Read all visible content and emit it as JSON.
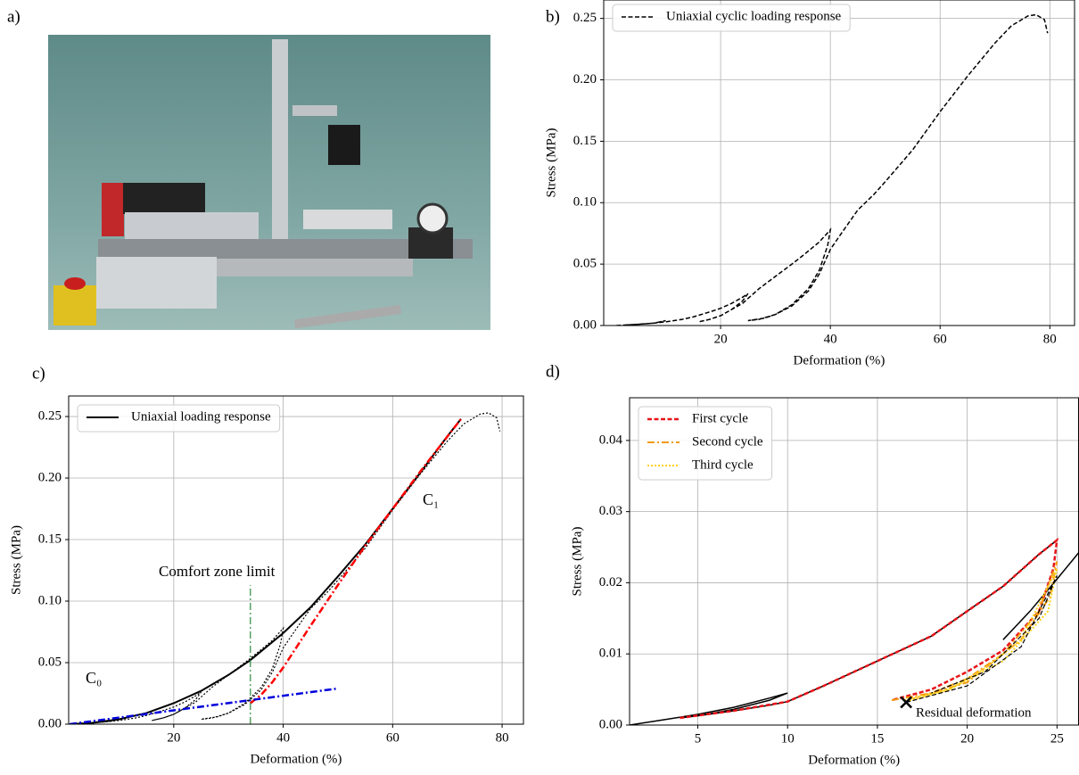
{
  "panel_a": {
    "label": "a)"
  },
  "chart_data": [
    {
      "type": "line",
      "label": "b)",
      "xlabel": "Deformation (%)",
      "ylabel": "Stress (MPa)",
      "xlim": [
        -1.3,
        84.5
      ],
      "ylim": [
        0,
        0.265
      ],
      "xticks": [
        20,
        40,
        60,
        80
      ],
      "yticks": [
        {
          "value": 0,
          "label": "0.00"
        },
        {
          "value": 0.05,
          "label": "0.05"
        },
        {
          "value": 0.1,
          "label": "0.10"
        },
        {
          "value": 0.15,
          "label": "0.15"
        },
        {
          "value": 0.2,
          "label": "0.20"
        },
        {
          "value": 0.25,
          "label": "0.25"
        }
      ],
      "grid": true,
      "legend": "upper left",
      "series": [
        {
          "name": "Uniaxial cyclic loading response",
          "color": "#000000",
          "style": "dashed",
          "width": 1.5,
          "x": [
            1,
            3,
            5,
            8,
            10,
            8,
            5,
            3,
            5,
            8,
            10,
            13,
            15,
            18,
            20,
            22,
            24,
            25,
            24,
            22,
            20,
            18,
            16,
            18,
            20,
            22,
            24,
            25,
            27,
            30,
            33,
            35,
            38,
            40,
            39.5,
            38,
            36,
            33,
            30,
            27,
            25,
            28,
            30,
            33,
            36,
            38,
            40,
            42,
            45,
            48,
            50,
            55,
            60,
            65,
            70,
            73,
            76,
            77.5,
            79,
            79.6
          ],
          "values": [
            0,
            0.0005,
            0.001,
            0.002,
            0.004,
            0.002,
            0.001,
            0.0005,
            0.001,
            0.002,
            0.003,
            0.005,
            0.007,
            0.011,
            0.014,
            0.018,
            0.023,
            0.026,
            0.02,
            0.013,
            0.008,
            0.005,
            0.003,
            0.005,
            0.008,
            0.013,
            0.018,
            0.022,
            0.03,
            0.04,
            0.05,
            0.057,
            0.068,
            0.078,
            0.065,
            0.045,
            0.03,
            0.017,
            0.009,
            0.005,
            0.004,
            0.006,
            0.009,
            0.016,
            0.028,
            0.042,
            0.062,
            0.075,
            0.094,
            0.107,
            0.117,
            0.143,
            0.174,
            0.203,
            0.23,
            0.244,
            0.252,
            0.253,
            0.249,
            0.238
          ]
        }
      ]
    },
    {
      "type": "line",
      "label": "c)",
      "xlabel": "Deformation (%)",
      "ylabel": "Stress (MPa)",
      "xlim": [
        0.8,
        83.9
      ],
      "ylim": [
        0,
        0.2667
      ],
      "xticks": [
        20,
        40,
        60,
        80
      ],
      "yticks": [
        {
          "value": 0,
          "label": "0.00"
        },
        {
          "value": 0.05,
          "label": "0.05"
        },
        {
          "value": 0.1,
          "label": "0.10"
        },
        {
          "value": 0.15,
          "label": "0.15"
        },
        {
          "value": 0.2,
          "label": "0.20"
        },
        {
          "value": 0.25,
          "label": "0.25"
        }
      ],
      "grid": true,
      "legend": "upper left",
      "annotations": [
        {
          "text": "C₀",
          "color": "#0000ff"
        },
        {
          "text": "C₁",
          "color": "#ff2020"
        },
        {
          "text": "Comfort zone limit",
          "color": "#2e8b3e"
        }
      ],
      "series": [
        {
          "color": "#000000",
          "style": "dotted",
          "width": 1.2,
          "x": [
            1,
            3,
            5,
            8,
            10,
            8,
            5,
            3,
            5,
            8,
            10,
            13,
            15,
            18,
            20,
            22,
            24,
            25,
            24,
            22,
            20,
            18,
            16,
            18,
            20,
            22,
            24,
            25,
            27,
            30,
            33,
            35,
            38,
            40,
            39.5,
            38,
            36,
            33,
            30,
            27,
            25,
            28,
            30,
            33,
            36,
            38,
            40,
            42,
            45,
            48,
            50,
            55,
            60,
            65,
            70,
            73,
            76,
            77.5,
            79,
            79.6
          ],
          "values": [
            0,
            0.0005,
            0.001,
            0.002,
            0.004,
            0.002,
            0.001,
            0.0005,
            0.001,
            0.002,
            0.003,
            0.005,
            0.007,
            0.011,
            0.014,
            0.018,
            0.023,
            0.026,
            0.02,
            0.013,
            0.008,
            0.005,
            0.003,
            0.005,
            0.008,
            0.013,
            0.018,
            0.022,
            0.03,
            0.04,
            0.05,
            0.057,
            0.068,
            0.078,
            0.065,
            0.045,
            0.03,
            0.017,
            0.009,
            0.005,
            0.004,
            0.006,
            0.009,
            0.016,
            0.028,
            0.042,
            0.062,
            0.075,
            0.094,
            0.107,
            0.117,
            0.143,
            0.174,
            0.203,
            0.23,
            0.244,
            0.252,
            0.253,
            0.249,
            0.238
          ]
        },
        {
          "name": "Uniaxial loading response",
          "color": "#000000",
          "style": "solid",
          "width": 2,
          "x": [
            1,
            5,
            10,
            15,
            20,
            25,
            30,
            34,
            40,
            45,
            50,
            55,
            60,
            65,
            70,
            72.5
          ],
          "values": [
            0,
            0.001,
            0.004,
            0.009,
            0.017,
            0.027,
            0.04,
            0.052,
            0.074,
            0.095,
            0.12,
            0.146,
            0.175,
            0.204,
            0.234,
            0.248
          ]
        },
        {
          "color": "#ff0000",
          "style": "dashdot",
          "width": 2.5,
          "x": [
            34,
            36,
            38,
            40,
            45,
            50,
            55,
            60,
            65,
            72.5
          ],
          "values": [
            0.017,
            0.024,
            0.034,
            0.046,
            0.08,
            0.113,
            0.145,
            0.175,
            0.205,
            0.248
          ]
        },
        {
          "color": "#0000dd",
          "style": "dashdot",
          "width": 2.5,
          "x": [
            1,
            50
          ],
          "values": [
            0,
            0.029
          ]
        },
        {
          "color": "#2e8b3e",
          "style": "dashdot",
          "width": 1.2,
          "x": [
            34,
            34
          ],
          "values": [
            0,
            0.113
          ]
        }
      ]
    },
    {
      "type": "line",
      "label": "d)",
      "xlabel": "Deformation (%)",
      "ylabel": "Stress (MPa)",
      "xlim": [
        1.2,
        26.2
      ],
      "ylim": [
        0,
        0.046
      ],
      "xticks": [
        5,
        10,
        15,
        20,
        25
      ],
      "yticks": [
        {
          "value": 0,
          "label": "0.00"
        },
        {
          "value": 0.01,
          "label": "0.01"
        },
        {
          "value": 0.02,
          "label": "0.02"
        },
        {
          "value": 0.03,
          "label": "0.03"
        },
        {
          "value": 0.04,
          "label": "0.04"
        }
      ],
      "grid": true,
      "legend": "upper left",
      "annotations": [
        {
          "text": "Residual deformation",
          "color": "#000000"
        }
      ],
      "marker": {
        "x": 16.6,
        "y": 0.0032,
        "color": "#000000"
      },
      "series": [
        {
          "color": "#000000",
          "style": "solid",
          "width": 1.5,
          "x": [
            1.2,
            3,
            5,
            7,
            9,
            10,
            9,
            7,
            5,
            4,
            5,
            7,
            9,
            10,
            12,
            15,
            18,
            20,
            22,
            24,
            25
          ],
          "values": [
            0,
            0.0007,
            0.0015,
            0.0025,
            0.0038,
            0.0045,
            0.0035,
            0.0022,
            0.0013,
            0.001,
            0.0013,
            0.002,
            0.0028,
            0.0033,
            0.0055,
            0.009,
            0.0125,
            0.016,
            0.0195,
            0.024,
            0.026
          ]
        },
        {
          "color": "#000000",
          "style": "solid",
          "width": 1.5,
          "x": [
            22,
            23.5,
            25,
            26.3
          ],
          "values": [
            0.012,
            0.016,
            0.0205,
            0.0245
          ]
        },
        {
          "name": "First cycle",
          "color": "#e8141a",
          "style": "dashed",
          "width": 2.5,
          "x": [
            4,
            7,
            10,
            12,
            15,
            18,
            20,
            22,
            24,
            25,
            24.8,
            24,
            22,
            20,
            18,
            15.8
          ],
          "values": [
            0.001,
            0.002,
            0.0033,
            0.0055,
            0.009,
            0.0125,
            0.016,
            0.0195,
            0.024,
            0.026,
            0.022,
            0.016,
            0.0105,
            0.0075,
            0.005,
            0.0035
          ]
        },
        {
          "name": "Second cycle",
          "color": "#f39a12",
          "style": "dashdot",
          "width": 2,
          "x": [
            15.8,
            18,
            20,
            22,
            24,
            25,
            24.6,
            23,
            20,
            17
          ],
          "values": [
            0.0035,
            0.0045,
            0.0065,
            0.01,
            0.016,
            0.023,
            0.018,
            0.012,
            0.006,
            0.0037
          ]
        },
        {
          "name": "Third cycle",
          "color": "#ffd21a",
          "style": "dotted",
          "width": 2,
          "x": [
            16.5,
            19,
            21,
            23,
            25,
            24.5,
            22,
            19,
            16.6
          ],
          "values": [
            0.0035,
            0.005,
            0.008,
            0.012,
            0.022,
            0.016,
            0.009,
            0.005,
            0.0033
          ]
        },
        {
          "color": "#000000",
          "style": "dashed",
          "width": 1.2,
          "x": [
            16.6,
            20,
            23,
            25,
            24,
            21,
            18
          ],
          "values": [
            0.0032,
            0.0055,
            0.011,
            0.021,
            0.015,
            0.0075,
            0.0045
          ]
        }
      ]
    }
  ]
}
